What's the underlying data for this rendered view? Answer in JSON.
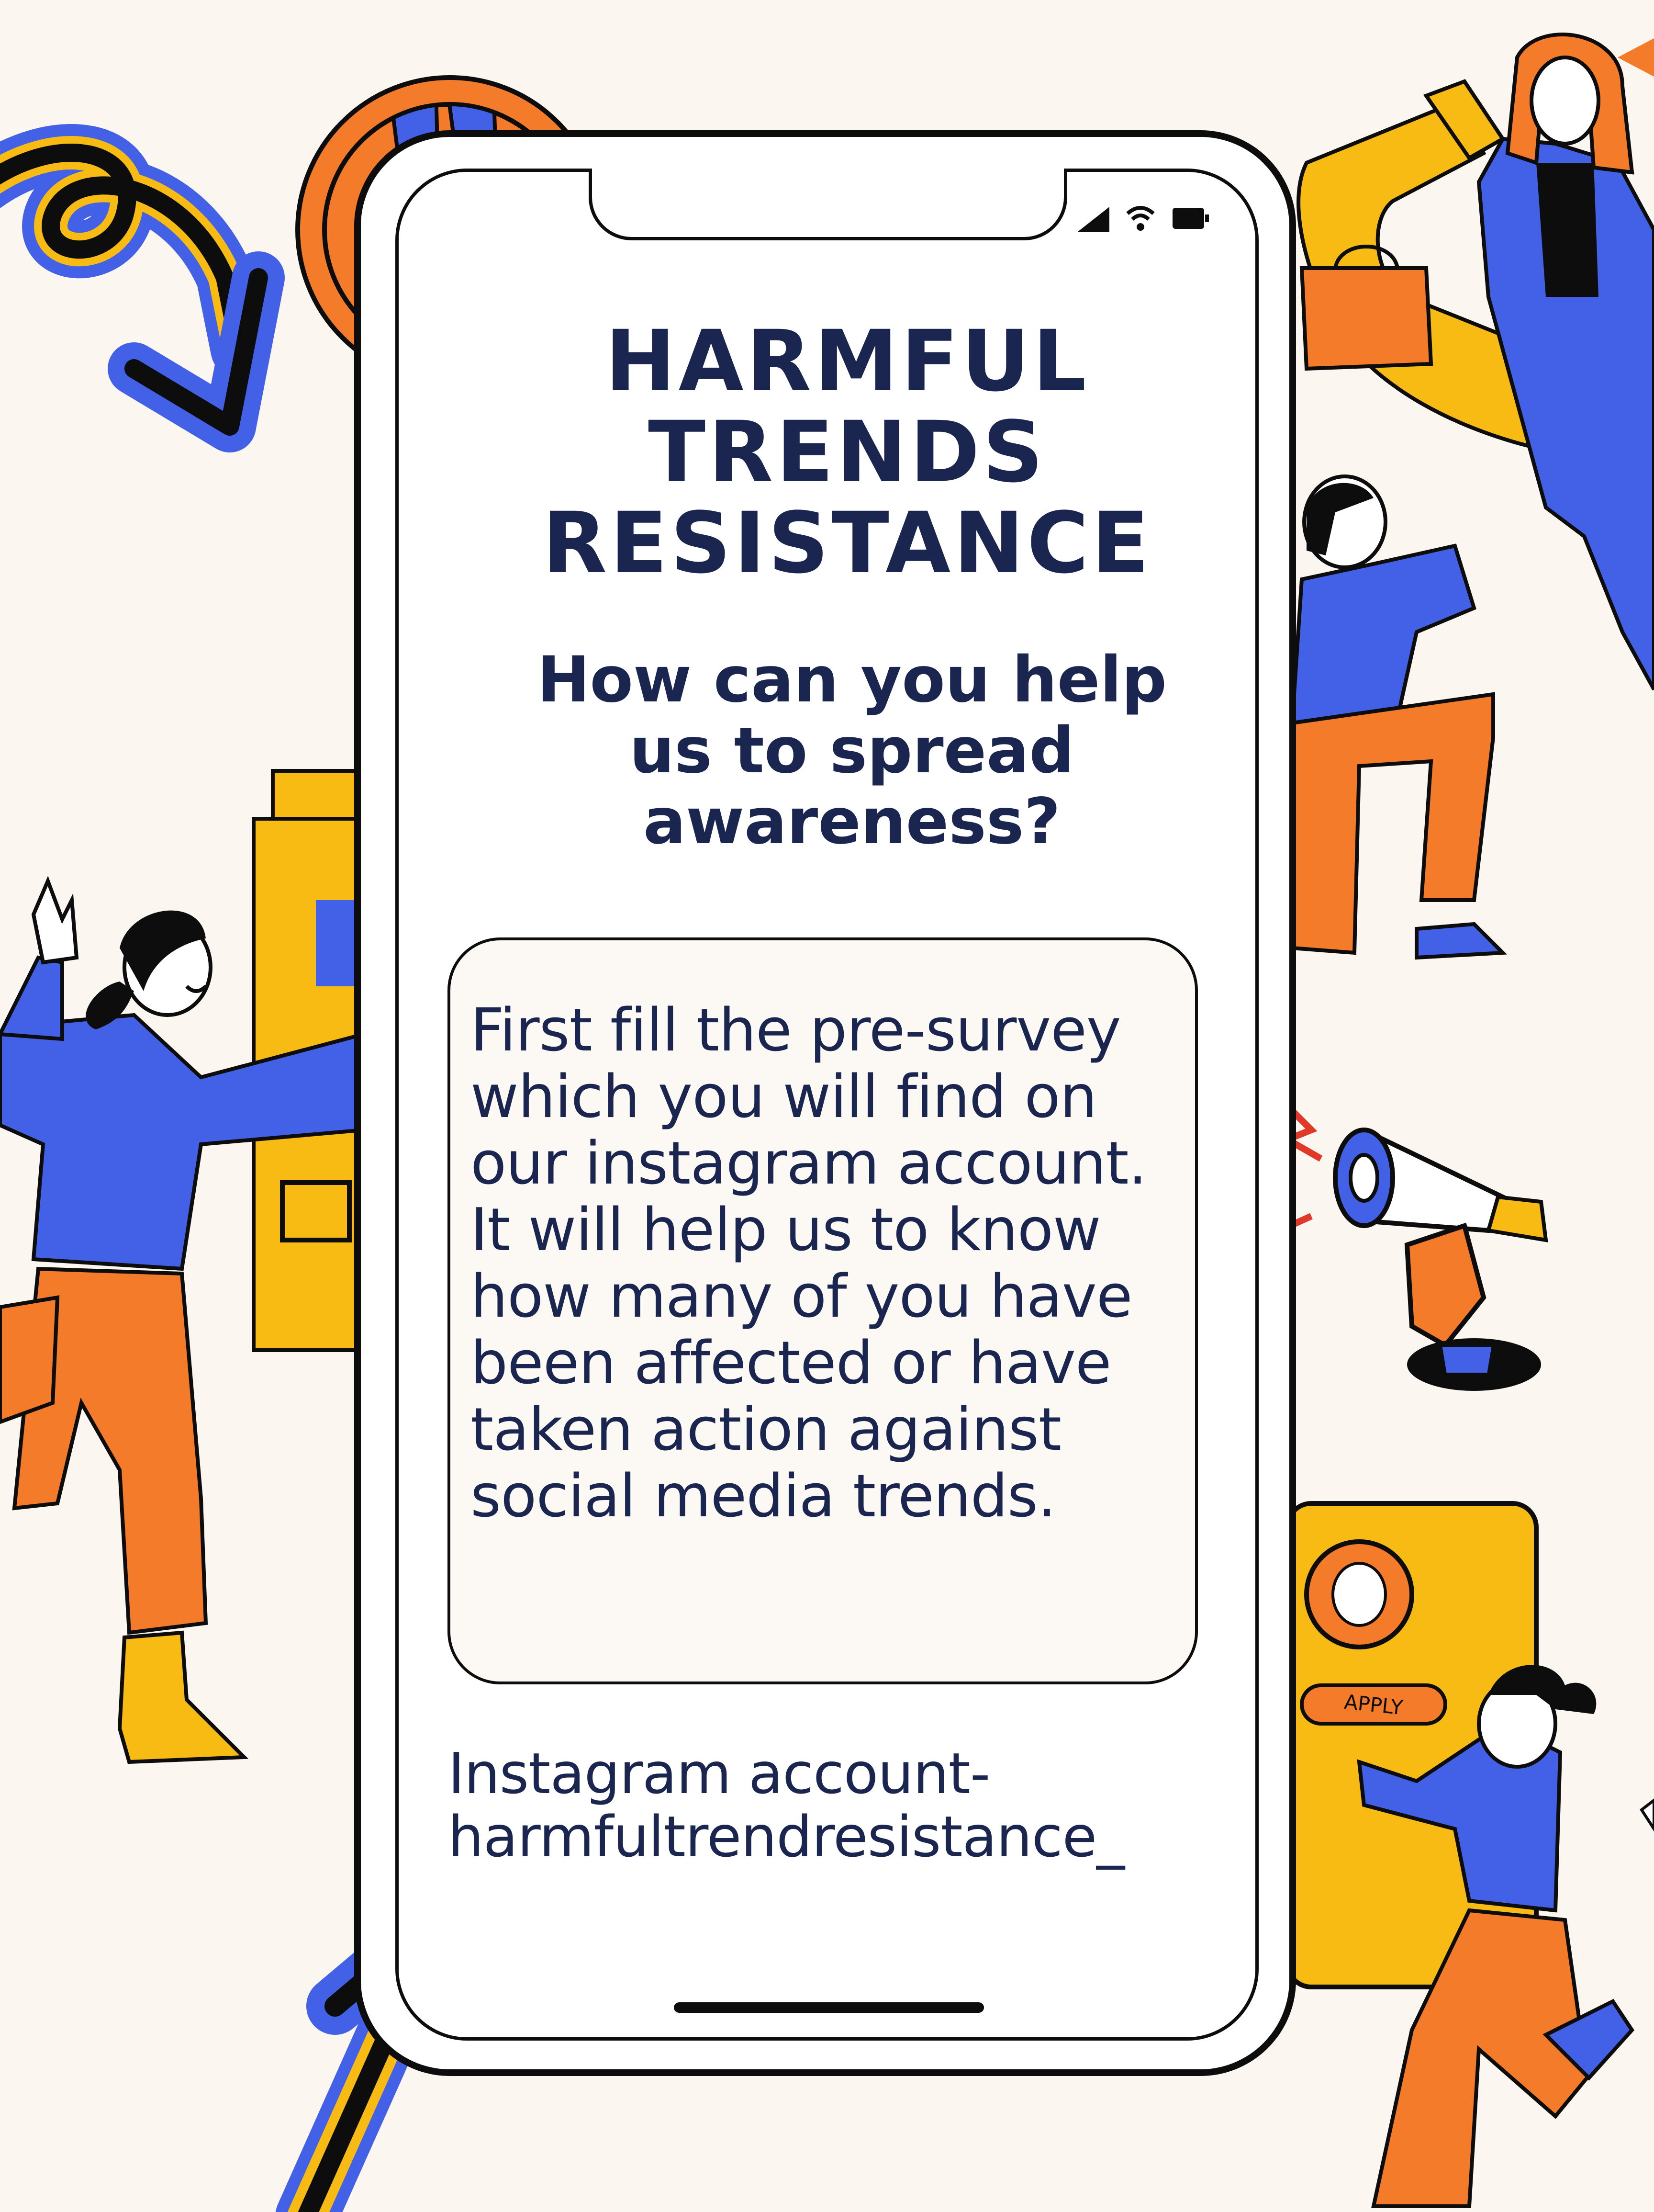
{
  "poster": {
    "title_lines": [
      "HARMFUL",
      "TRENDS",
      "RESISTANCE"
    ],
    "subtitle_lines": [
      "How can you help",
      "us to spread",
      "awareness?"
    ],
    "info_lines": [
      "First fill the pre-survey",
      "which you will find on",
      "our instagram account.",
      "It will help us to know",
      "how many of you have",
      "been affected or have",
      "taken action against",
      "social media trends."
    ],
    "instagram_lines": [
      "Instagram account-",
      "harmfultrendresistance_"
    ],
    "apply_label": "APPLY"
  },
  "status_bar": {
    "icons": [
      "signal-icon",
      "wifi-icon",
      "battery-icon"
    ]
  },
  "colors": {
    "background": "#fcf6f0",
    "navy_text": "#1b2650",
    "orange": "#f47b2a",
    "blue": "#4361e6",
    "yellow": "#f7bb13",
    "black": "#0d0d0d"
  }
}
